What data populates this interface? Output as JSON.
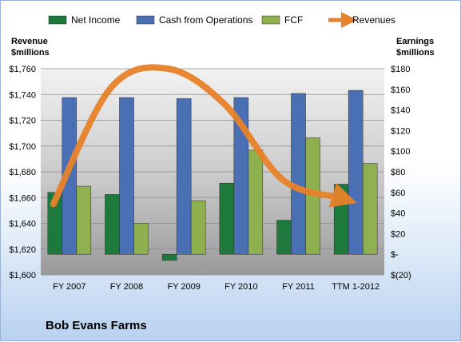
{
  "chart_data": {
    "type": "bar",
    "title": "Bob Evans Farms",
    "categories": [
      "FY 2007",
      "FY 2008",
      "FY 2009",
      "FY 2010",
      "FY 2011",
      "TTM 1-2012"
    ],
    "series": [
      {
        "name": "Net Income",
        "axis": "right",
        "color": "#1e7a3c",
        "values": [
          60,
          58,
          -6,
          69,
          33,
          68
        ]
      },
      {
        "name": "Cash from Operations",
        "axis": "right",
        "color": "#4a6fb5",
        "values": [
          152,
          152,
          151,
          152,
          156,
          159
        ]
      },
      {
        "name": "FCF",
        "axis": "right",
        "color": "#8fb04e",
        "values": [
          66,
          30,
          52,
          101,
          113,
          88
        ]
      },
      {
        "name": "Revenues",
        "axis": "left",
        "type": "line",
        "color": "#e8822a",
        "values": [
          1655,
          1745,
          1760,
          1732,
          1674,
          1660
        ]
      }
    ],
    "ylabel_left": "Revenue\n$millions",
    "ylabel_right": "Earnings\n$millions",
    "ylim_left": [
      1600,
      1760
    ],
    "ylim_right": [
      -20,
      180
    ],
    "yticks_left": [
      "$1,600",
      "$1,620",
      "$1,640",
      "$1,660",
      "$1,680",
      "$1,700",
      "$1,720",
      "$1,740",
      "$1,760"
    ],
    "yticks_right": [
      "$(20)",
      "$-",
      "$20",
      "$40",
      "$60",
      "$80",
      "$100",
      "$120",
      "$140",
      "$160",
      "$180"
    ],
    "legend_position": "top",
    "grid": true
  }
}
